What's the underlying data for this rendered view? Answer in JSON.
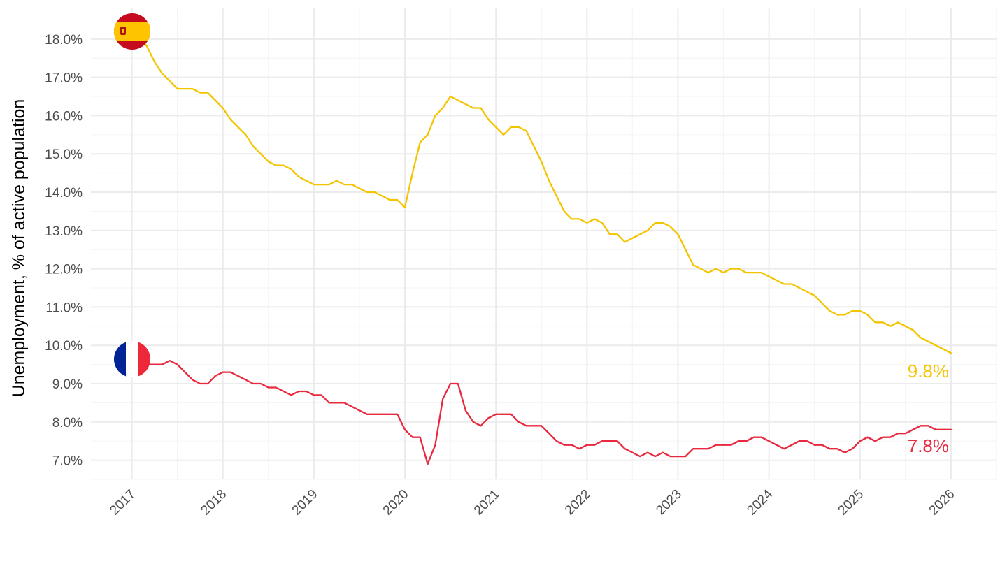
{
  "chart_data": {
    "type": "line",
    "title": "",
    "xlabel": "",
    "ylabel": "Unemployment, % of active population",
    "xlim": [
      2016.55,
      2026.5
    ],
    "ylim": [
      6.5,
      18.8
    ],
    "x_ticks": [
      2017,
      2018,
      2019,
      2020,
      2021,
      2022,
      2023,
      2024,
      2025,
      2026
    ],
    "x_tick_labels": [
      "2017",
      "2018",
      "2019",
      "2020",
      "2021",
      "2022",
      "2023",
      "2024",
      "2025",
      "2026"
    ],
    "y_ticks": [
      7,
      8,
      9,
      10,
      11,
      12,
      13,
      14,
      15,
      16,
      17,
      18
    ],
    "y_tick_labels": [
      "7.0%",
      "8.0%",
      "9.0%",
      "10.0%",
      "11.0%",
      "12.0%",
      "13.0%",
      "14.0%",
      "15.0%",
      "16.0%",
      "17.0%",
      "18.0%"
    ],
    "grid": true,
    "legend": "none",
    "series": [
      {
        "key": "spain",
        "color": "#F5C400",
        "flag_icon": "spain-flag-icon",
        "end_label": "9.8%",
        "start": "2017-01",
        "values": [
          18.4,
          18.1,
          17.8,
          17.4,
          17.1,
          16.9,
          16.7,
          16.7,
          16.7,
          16.6,
          16.6,
          16.4,
          16.2,
          15.9,
          15.7,
          15.5,
          15.2,
          15.0,
          14.8,
          14.7,
          14.7,
          14.6,
          14.4,
          14.3,
          14.2,
          14.2,
          14.2,
          14.3,
          14.2,
          14.2,
          14.1,
          14.0,
          14.0,
          13.9,
          13.8,
          13.8,
          13.6,
          14.5,
          15.3,
          15.5,
          16.0,
          16.2,
          16.5,
          16.4,
          16.3,
          16.2,
          16.2,
          15.9,
          15.7,
          15.5,
          15.7,
          15.7,
          15.6,
          15.2,
          14.8,
          14.3,
          13.9,
          13.5,
          13.3,
          13.3,
          13.2,
          13.3,
          13.2,
          12.9,
          12.9,
          12.7,
          12.8,
          12.9,
          13.0,
          13.2,
          13.2,
          13.1,
          12.9,
          12.5,
          12.1,
          12.0,
          11.9,
          12.0,
          11.9,
          12.0,
          12.0,
          11.9,
          11.9,
          11.9,
          11.8,
          11.7,
          11.6,
          11.6,
          11.5,
          11.4,
          11.3,
          11.1,
          10.9,
          10.8,
          10.8,
          10.9,
          10.9,
          10.8,
          10.6,
          10.6,
          10.5,
          10.6,
          10.5,
          10.4,
          10.2,
          10.1,
          10.0,
          9.9,
          9.8
        ]
      },
      {
        "key": "france",
        "color": "#E8293F",
        "flag_icon": "france-flag-icon",
        "end_label": "7.8%",
        "start": "2017-01",
        "values": [
          9.7,
          9.6,
          9.5,
          9.5,
          9.5,
          9.6,
          9.5,
          9.3,
          9.1,
          9.0,
          9.0,
          9.2,
          9.3,
          9.3,
          9.2,
          9.1,
          9.0,
          9.0,
          8.9,
          8.9,
          8.8,
          8.7,
          8.8,
          8.8,
          8.7,
          8.7,
          8.5,
          8.5,
          8.5,
          8.4,
          8.3,
          8.2,
          8.2,
          8.2,
          8.2,
          8.2,
          7.8,
          7.6,
          7.6,
          6.9,
          7.4,
          8.6,
          9.0,
          9.0,
          8.3,
          8.0,
          7.9,
          8.1,
          8.2,
          8.2,
          8.2,
          8.0,
          7.9,
          7.9,
          7.9,
          7.7,
          7.5,
          7.4,
          7.4,
          7.3,
          7.4,
          7.4,
          7.5,
          7.5,
          7.5,
          7.3,
          7.2,
          7.1,
          7.2,
          7.1,
          7.2,
          7.1,
          7.1,
          7.1,
          7.3,
          7.3,
          7.3,
          7.4,
          7.4,
          7.4,
          7.5,
          7.5,
          7.6,
          7.6,
          7.5,
          7.4,
          7.3,
          7.4,
          7.5,
          7.5,
          7.4,
          7.4,
          7.3,
          7.3,
          7.2,
          7.3,
          7.5,
          7.6,
          7.5,
          7.6,
          7.6,
          7.7,
          7.7,
          7.8,
          7.9,
          7.9,
          7.8,
          7.8,
          7.8
        ]
      }
    ]
  },
  "colors": {
    "background": "#ffffff",
    "grid_major": "#ebebeb",
    "grid_minor": "#f5f5f5",
    "tick_text": "#4d4d4d"
  }
}
